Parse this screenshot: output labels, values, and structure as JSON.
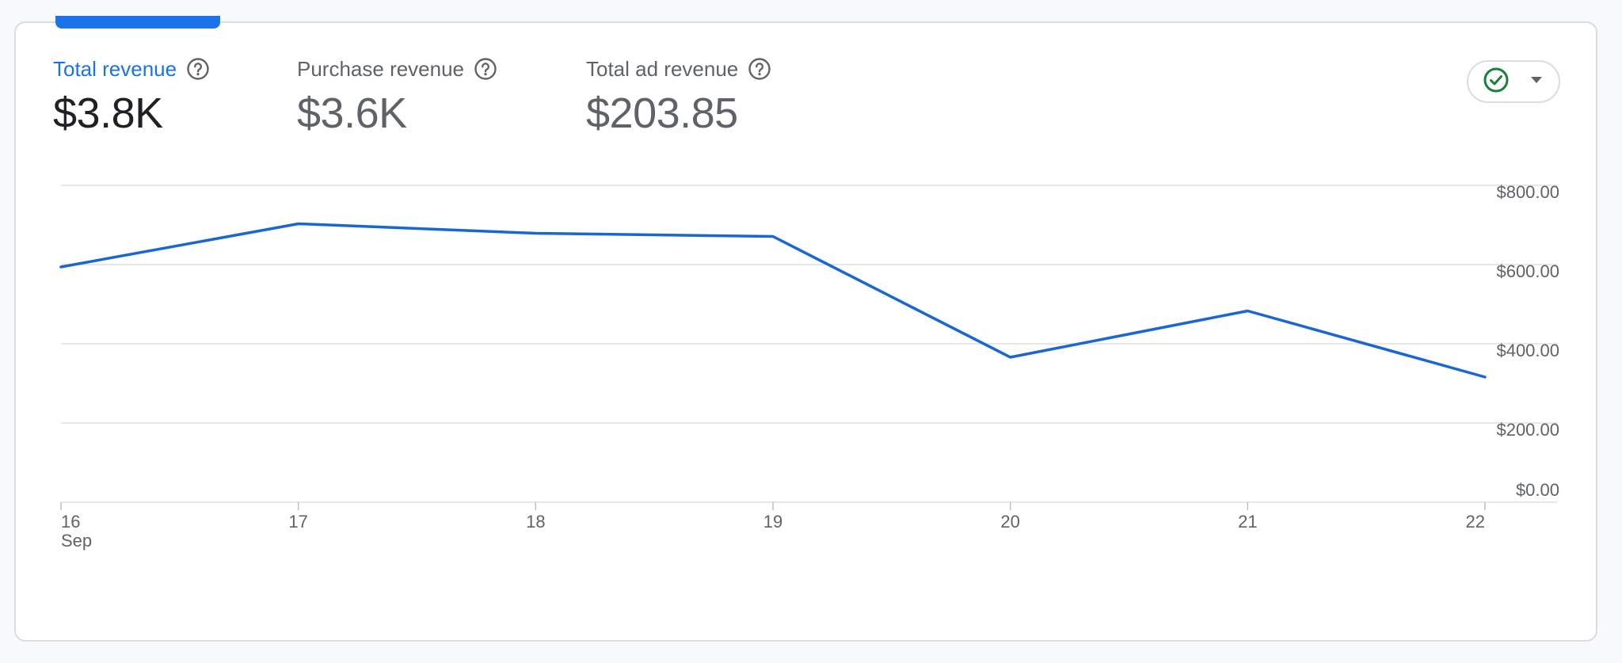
{
  "metrics": [
    {
      "label": "Total revenue",
      "value": "$3.8K",
      "active": true
    },
    {
      "label": "Purchase revenue",
      "value": "$3.6K",
      "active": false
    },
    {
      "label": "Total ad revenue",
      "value": "$203.85",
      "active": false
    }
  ],
  "status_dropdown": {
    "icon": "check-circle-icon",
    "caret": "chevron-down-icon",
    "color": "#188038"
  },
  "colors": {
    "accent": "#1a73e8",
    "line": "#1967d2"
  },
  "chart_data": {
    "type": "line",
    "x": [
      "16",
      "17",
      "18",
      "19",
      "20",
      "21",
      "22"
    ],
    "x_sublabel": "Sep",
    "series": [
      {
        "values": [
          594,
          703,
          679,
          671,
          366,
          483,
          316
        ]
      }
    ],
    "ylim": [
      0,
      800
    ],
    "yticks": [
      "$0.00",
      "$200.00",
      "$400.00",
      "$600.00",
      "$800.00"
    ],
    "grid": true
  }
}
